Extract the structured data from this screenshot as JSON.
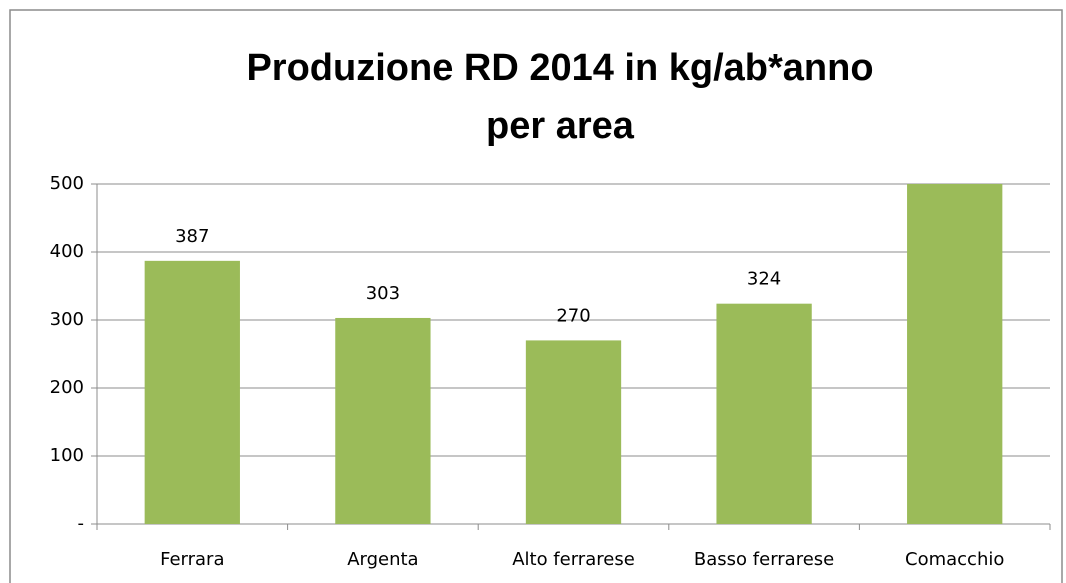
{
  "chart_data": {
    "type": "bar",
    "title": [
      "Produzione RD 2014 in kg/ab*anno",
      "per area"
    ],
    "categories": [
      "Ferrara",
      "Argenta",
      "Alto ferrarese",
      "Basso ferrarese",
      "Comacchio"
    ],
    "values": [
      387,
      303,
      270,
      324,
      500
    ],
    "color": "#9bbb59",
    "ylim": [
      0,
      500
    ],
    "yticks": [
      {
        "value": 0,
        "label": "-"
      },
      100,
      200,
      300,
      400,
      500
    ],
    "grid": true
  }
}
